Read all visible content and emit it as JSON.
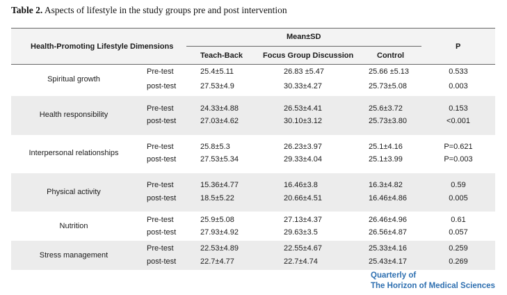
{
  "caption": {
    "label": "Table 2.",
    "text": "Aspects of lifestyle in the study groups pre and post intervention"
  },
  "header": {
    "dimension_col": "Health-Promoting Lifestyle Dimensions",
    "group_header": "Mean±SD",
    "col_teach_back": "Teach-Back",
    "col_focus_group": "Focus Group Discussion",
    "col_control": "Control",
    "col_p": "P"
  },
  "rows": [
    {
      "dimension": "Spiritual growth",
      "pre": {
        "phase": "Pre-test",
        "teach_back": "25.4±5.11",
        "focus_group": "26.83 ±5.47",
        "control": "25.66 ±5.13",
        "p": "0.533"
      },
      "post": {
        "phase": "post-test",
        "teach_back": "27.53±4.9",
        "focus_group": "30.33±4.27",
        "control": "25.73±5.08",
        "p": "0.003"
      }
    },
    {
      "dimension": "Health responsibility",
      "pre": {
        "phase": "Pre-test",
        "teach_back": "24.33±4.88",
        "focus_group": "26.53±4.41",
        "control": "25.6±3.72",
        "p": "0.153"
      },
      "post": {
        "phase": "post-test",
        "teach_back": "27.03±4.62",
        "focus_group": "30.10±3.12",
        "control": "25.73±3.80",
        "p": "<0.001"
      }
    },
    {
      "dimension": "Interpersonal relationships",
      "pre": {
        "phase": "Pre-test",
        "teach_back": "25.8±5.3",
        "focus_group": "26.23±3.97",
        "control": "25.1±4.16",
        "p": "P=0.621"
      },
      "post": {
        "phase": "post-test",
        "teach_back": "27.53±5.34",
        "focus_group": "29.33±4.04",
        "control": "25.1±3.99",
        "p": "P=0.003"
      }
    },
    {
      "dimension": "Physical activity",
      "pre": {
        "phase": "Pre-test",
        "teach_back": "15.36±4.77",
        "focus_group": "16.46±3.8",
        "control": "16.3±4.82",
        "p": "0.59"
      },
      "post": {
        "phase": "post-test",
        "teach_back": "18.5±5.22",
        "focus_group": "20.66±4.51",
        "control": "16.46±4.86",
        "p": "0.005"
      }
    },
    {
      "dimension": "Nutrition",
      "pre": {
        "phase": "Pre-test",
        "teach_back": "25.9±5.08",
        "focus_group": "27.13±4.37",
        "control": "26.46±4.96",
        "p": "0.61"
      },
      "post": {
        "phase": "post-test",
        "teach_back": "27.93±4.92",
        "focus_group": "29.63±3.5",
        "control": "26.56±4.87",
        "p": "0.057"
      }
    },
    {
      "dimension": "Stress management",
      "pre": {
        "phase": "Pre-test",
        "teach_back": "22.53±4.89",
        "focus_group": "22.55±4.67",
        "control": "25.33±4.16",
        "p": "0.259"
      },
      "post": {
        "phase": "post-test",
        "teach_back": "22.7±4.77",
        "focus_group": "22.7±4.74",
        "control": "25.43±4.17",
        "p": "0.269"
      }
    }
  ],
  "footer": {
    "line1": "Quarterly of",
    "line2": "The Horizon of Medical Sciences",
    "color": "#2e6fb0"
  }
}
